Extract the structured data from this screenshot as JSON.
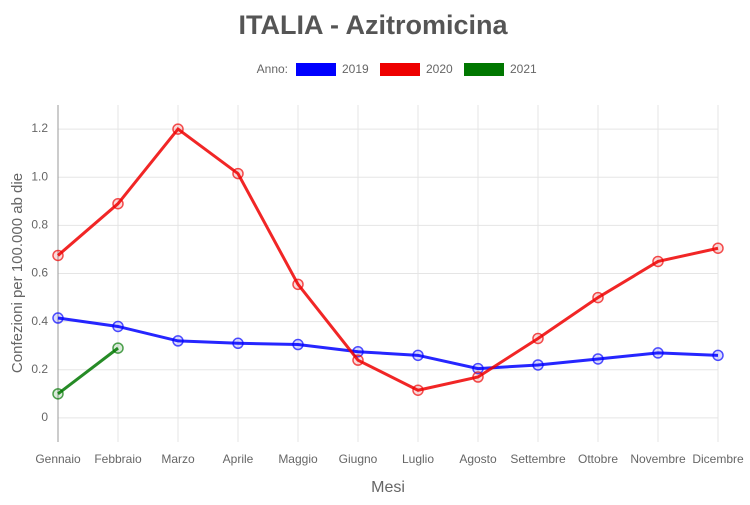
{
  "chart_data": {
    "type": "line",
    "title": "ITALIA - Azitromicina",
    "legend_title": "Anno:",
    "x_label": "Mesi",
    "y_label": "Confezioni per 100.000 ab die",
    "categories": [
      "Gennaio",
      "Febbraio",
      "Marzo",
      "Aprile",
      "Maggio",
      "Giugno",
      "Luglio",
      "Agosto",
      "Settembre",
      "Ottobre",
      "Novembre",
      "Dicembre"
    ],
    "series": [
      {
        "name": "2019",
        "color": "#0000ff",
        "values": [
          0.415,
          0.38,
          0.32,
          0.31,
          0.305,
          0.275,
          0.26,
          0.205,
          0.22,
          0.245,
          0.27,
          0.26
        ]
      },
      {
        "name": "2020",
        "color": "#ee0000",
        "values": [
          0.675,
          0.89,
          1.2,
          1.015,
          0.555,
          0.24,
          0.115,
          0.17,
          0.33,
          0.5,
          0.65,
          0.705
        ]
      },
      {
        "name": "2021",
        "color": "#007700",
        "values": [
          0.1,
          0.29,
          null,
          null,
          null,
          null,
          null,
          null,
          null,
          null,
          null,
          null
        ]
      }
    ],
    "ylim": [
      -0.1,
      1.3
    ],
    "yticks": [
      0,
      0.2,
      0.4,
      0.6,
      0.8,
      {
        "value": 1,
        "label": "1.0"
      },
      1.2
    ],
    "grid": true
  }
}
